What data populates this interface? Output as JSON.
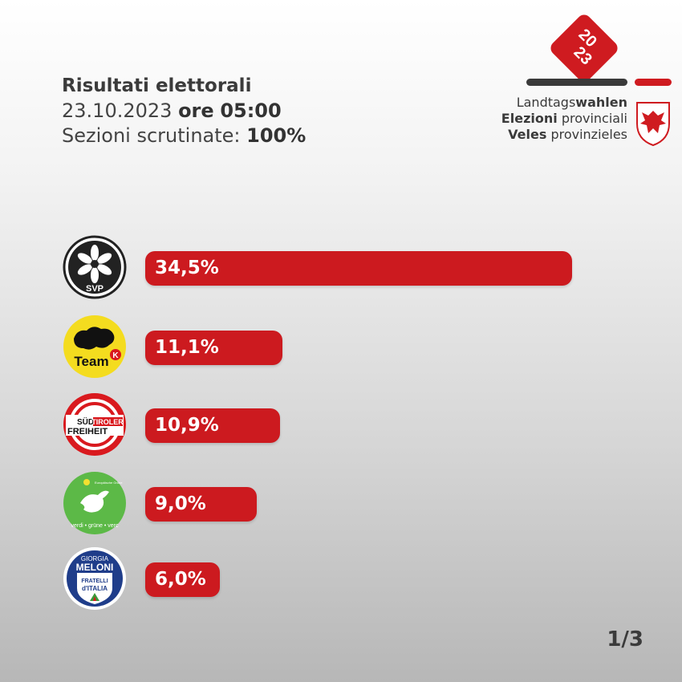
{
  "header": {
    "title": "Risultati elettorali",
    "date": "23.10.2023",
    "time_prefix": "ore",
    "time": "05:00",
    "sections_label": "Sezioni scrutinate:",
    "sections_value": "100%"
  },
  "brand": {
    "year_top": "20",
    "year_bottom": "23",
    "line1_plain": "Landtags",
    "line1_bold": "wahlen",
    "line2_bold": "Elezioni",
    "line2_plain": "provinciali",
    "line3_bold": "Veles",
    "line3_plain": "provinzieles"
  },
  "colors": {
    "accent": "#cc1a1f",
    "dark": "#3a3a3a"
  },
  "chart_data": {
    "type": "bar",
    "orientation": "horizontal",
    "categories": [
      "SVP",
      "Team K",
      "Süd-Tiroler Freiheit",
      "Verdi - Grüne - Vërc",
      "Fratelli d'Italia"
    ],
    "values": [
      34.5,
      11.1,
      10.9,
      9.0,
      6.0
    ],
    "value_labels": [
      "34,5%",
      "11,1%",
      "10,9%",
      "9,0%",
      "6,0%"
    ],
    "unit": "%",
    "title": "",
    "xlabel": "",
    "ylabel": ""
  },
  "logos": {
    "svp_text": "SVP",
    "team_text": "Team",
    "team_k": "K",
    "stf_sud": "SÜD",
    "stf_tiroler": "TIROLER",
    "stf_freiheit": "FREIHEIT",
    "greens_top": "Europäische Grüne",
    "greens_bottom": "verdi • grüne • verc",
    "fdi_giorgia": "GIORGIA",
    "fdi_meloni": "MELONI",
    "fdi_fratelli": "FRATELLI",
    "fdi_italia": "d'ITALIA"
  },
  "footer": {
    "page": "1/3"
  }
}
